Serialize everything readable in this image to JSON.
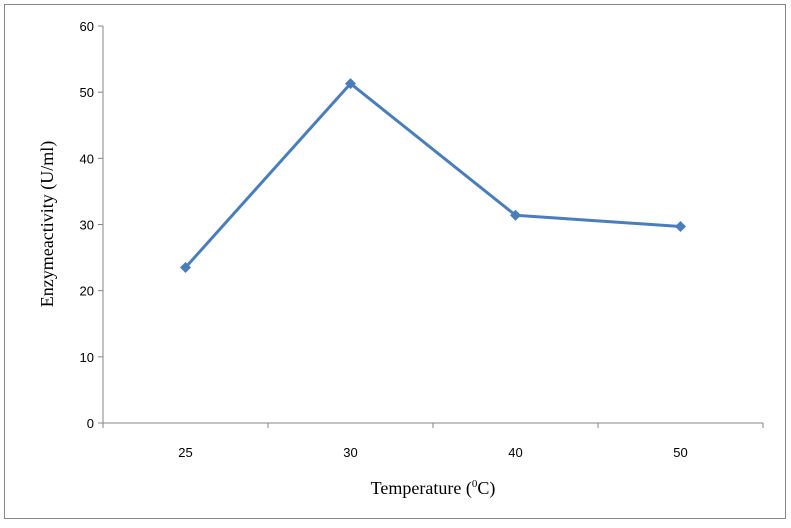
{
  "chart_data": {
    "type": "line",
    "title": "",
    "xlabel": "Temperature (",
    "xlabel_sup": "0",
    "xlabel_end": "C)",
    "ylabel": "Enzymeactivity (U/ml)",
    "categories": [
      "25",
      "30",
      "40",
      "50"
    ],
    "series": [
      {
        "values": [
          23.5,
          51.3,
          31.4,
          29.7
        ],
        "color": "#4a7ebb",
        "marker": "diamond"
      }
    ],
    "ylim": [
      0,
      60
    ],
    "yticks": [
      "0",
      "10",
      "20",
      "30",
      "40",
      "50",
      "60"
    ],
    "grid": false,
    "legend": "none"
  }
}
